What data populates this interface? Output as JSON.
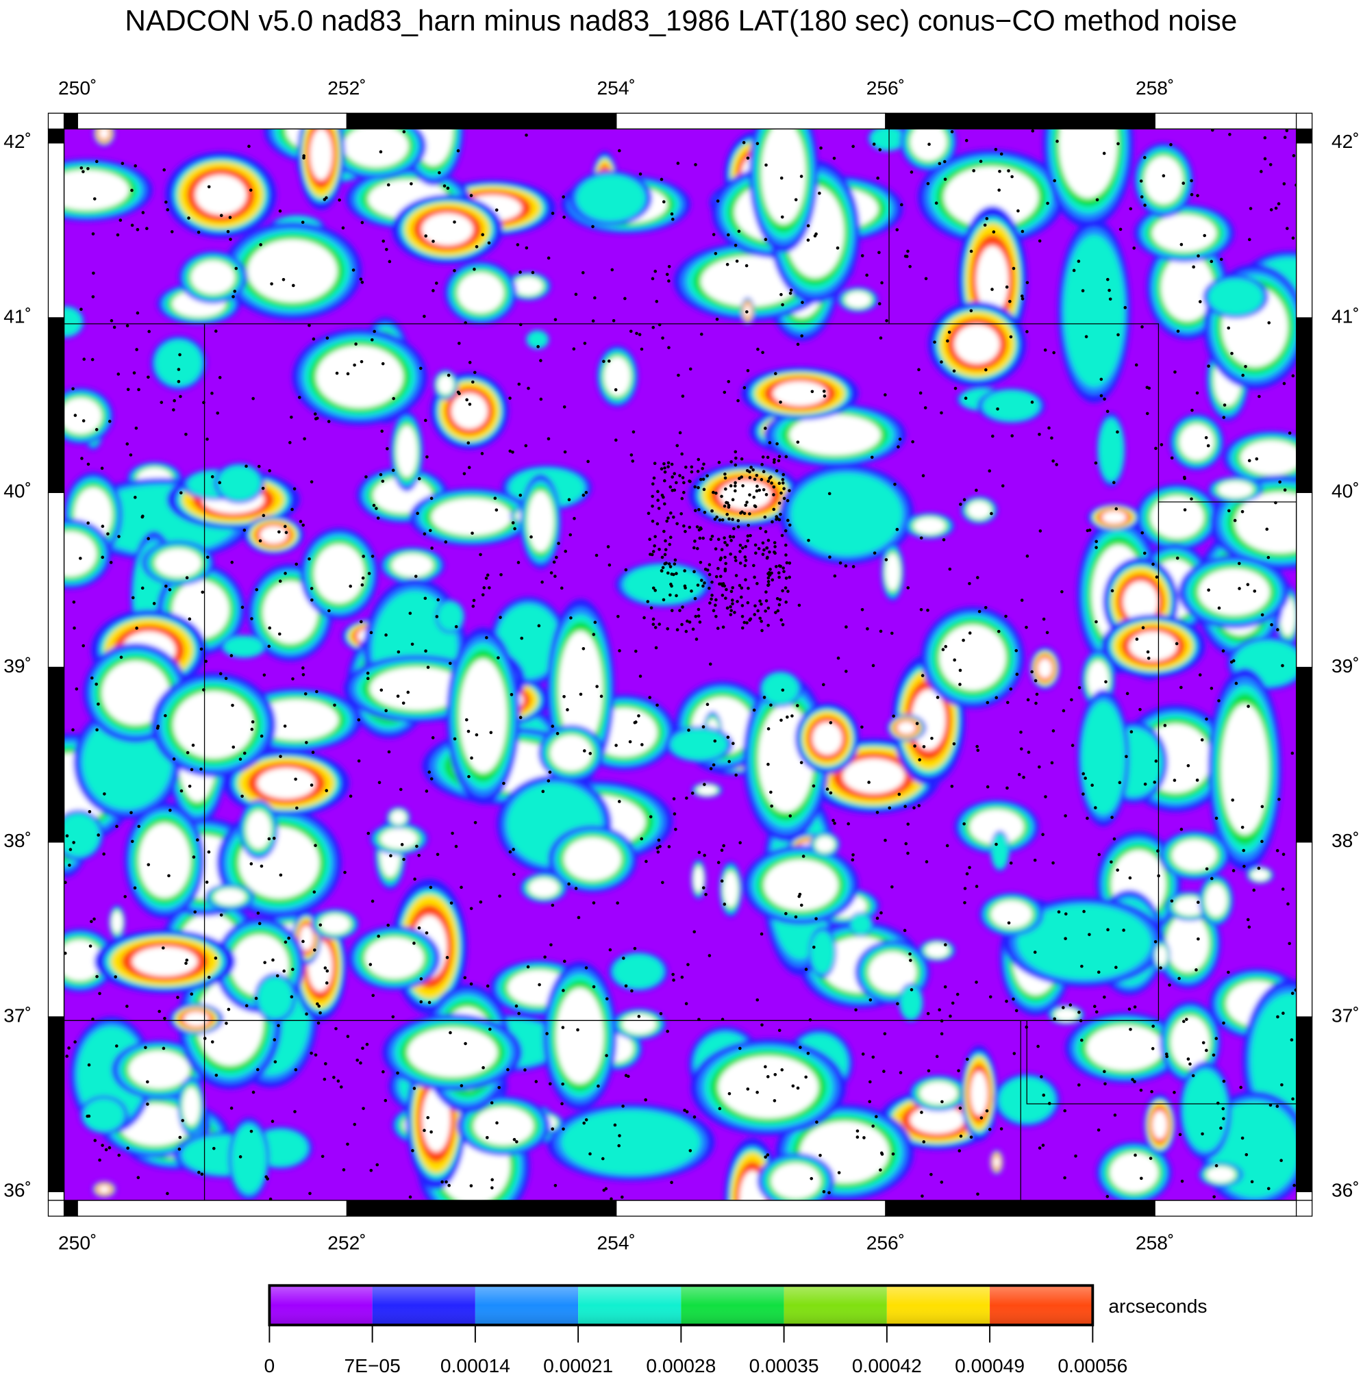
{
  "title": "NADCON v5.0 nad83_harn minus nad83_1986 LAT(180 sec) conus−CO method noise",
  "map": {
    "xlim": [
      249.9,
      259.05
    ],
    "ylim": [
      35.95,
      42.08
    ],
    "lon_ticks": [
      {
        "value": 250,
        "label": "250˚"
      },
      {
        "value": 252,
        "label": "252˚"
      },
      {
        "value": 254,
        "label": "254˚"
      },
      {
        "value": 256,
        "label": "256˚"
      },
      {
        "value": 258,
        "label": "258˚"
      }
    ],
    "lat_ticks": [
      {
        "value": 36,
        "label": "36˚"
      },
      {
        "value": 37,
        "label": "37˚"
      },
      {
        "value": 38,
        "label": "38˚"
      },
      {
        "value": 39,
        "label": "39˚"
      },
      {
        "value": 40,
        "label": "40˚"
      },
      {
        "value": 41,
        "label": "41˚"
      },
      {
        "value": 42,
        "label": "42˚"
      }
    ]
  },
  "colorbar": {
    "label": "arcseconds",
    "lim": [
      0,
      0.00056
    ],
    "ticks": [
      0,
      {
        "value": 7e-05,
        "label": "7E−05"
      },
      0.00014,
      0.00021,
      0.00028,
      0.00035,
      0.00042,
      0.00049,
      0.00056
    ],
    "colors": [
      "#a000ff",
      "#2424ff",
      "#1a8cff",
      "#10f0d0",
      "#10e040",
      "#80e010",
      "#ffe000",
      "#ff4a10"
    ]
  }
}
